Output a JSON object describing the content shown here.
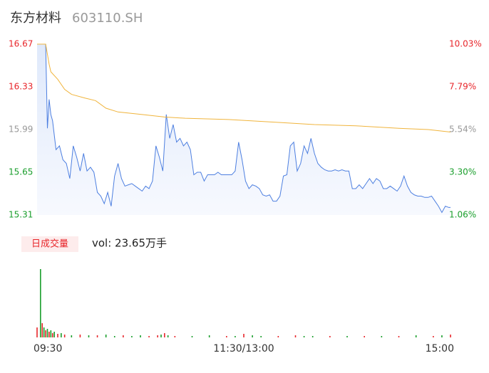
{
  "header": {
    "name": "东方材料",
    "code": "603110.SH"
  },
  "chart_data": {
    "type": "line",
    "xlim": [
      0,
      240
    ],
    "xticks": [
      {
        "value": 0,
        "label": "09:30"
      },
      {
        "value": 120,
        "label": "11:30/13:00"
      },
      {
        "value": 240,
        "label": "15:00"
      }
    ],
    "ylim": [
      15.31,
      16.67
    ],
    "yticks": [
      15.31,
      15.65,
      15.99,
      16.33,
      16.67
    ],
    "y2lim": [
      1.06,
      10.03
    ],
    "y2ticks": [
      {
        "value": 1.06,
        "label": "1.06%"
      },
      {
        "value": 3.3,
        "label": "3.30%"
      },
      {
        "value": 5.54,
        "label": "5.54%"
      },
      {
        "value": 7.79,
        "label": "7.79%"
      },
      {
        "value": 10.03,
        "label": "10.03%"
      }
    ],
    "tick_colors": [
      "#1a9e2c",
      "#1a9e2c",
      "#999999",
      "#e8262b",
      "#e8262b"
    ],
    "series": [
      {
        "color": "#4d7fe0",
        "x": [
          0,
          5,
          6,
          7,
          8,
          9,
          11,
          13,
          15,
          17,
          19,
          21,
          23,
          25,
          27,
          29,
          31,
          33,
          35,
          37,
          39,
          41,
          43,
          45,
          47,
          49,
          51,
          53,
          55,
          57,
          59,
          61,
          63,
          65,
          67,
          69,
          71,
          73,
          75,
          77,
          79,
          81,
          83,
          85,
          87,
          89,
          91,
          93,
          95,
          97,
          99,
          101,
          103,
          105,
          107,
          109,
          111,
          113,
          115,
          117,
          119,
          121,
          123,
          125,
          127,
          129,
          131,
          133,
          135,
          137,
          139,
          141,
          143,
          145,
          147,
          149,
          151,
          153,
          155,
          157,
          159,
          161,
          163,
          165,
          167,
          169,
          171,
          173,
          175,
          177,
          179,
          181,
          183,
          185,
          187,
          189,
          191,
          193,
          195,
          197,
          199,
          201,
          203,
          205,
          207,
          209,
          211,
          213,
          215,
          217,
          219,
          221,
          223,
          225,
          227,
          229,
          231,
          233,
          235,
          237,
          239,
          240
        ],
        "values": [
          16.67,
          16.67,
          16.0,
          16.23,
          16.11,
          16.06,
          15.83,
          15.86,
          15.75,
          15.72,
          15.6,
          15.86,
          15.77,
          15.66,
          15.8,
          15.66,
          15.69,
          15.65,
          15.49,
          15.46,
          15.4,
          15.49,
          15.38,
          15.62,
          15.72,
          15.6,
          15.54,
          15.55,
          15.56,
          15.54,
          15.52,
          15.5,
          15.54,
          15.52,
          15.58,
          15.86,
          15.77,
          15.66,
          16.11,
          15.92,
          16.03,
          15.89,
          15.92,
          15.86,
          15.89,
          15.83,
          15.63,
          15.65,
          15.65,
          15.58,
          15.63,
          15.63,
          15.63,
          15.65,
          15.63,
          15.63,
          15.63,
          15.63,
          15.66,
          15.89,
          15.75,
          15.58,
          15.52,
          15.55,
          15.54,
          15.52,
          15.47,
          15.46,
          15.47,
          15.42,
          15.42,
          15.46,
          15.62,
          15.63,
          15.86,
          15.89,
          15.66,
          15.72,
          15.86,
          15.8,
          15.92,
          15.8,
          15.72,
          15.69,
          15.67,
          15.66,
          15.66,
          15.67,
          15.66,
          15.67,
          15.66,
          15.66,
          15.52,
          15.52,
          15.55,
          15.52,
          15.56,
          15.6,
          15.56,
          15.6,
          15.58,
          15.52,
          15.52,
          15.54,
          15.52,
          15.5,
          15.54,
          15.62,
          15.54,
          15.49,
          15.47,
          15.46,
          15.46,
          15.45,
          15.45,
          15.46,
          15.42,
          15.38,
          15.33,
          15.38,
          15.37,
          15.37
        ]
      },
      {
        "color": "#f0b43c",
        "x": [
          0,
          5,
          7,
          8,
          12,
          16,
          20,
          28,
          34,
          40,
          47,
          61,
          74,
          86,
          111,
          136,
          161,
          185,
          210,
          227,
          240
        ],
        "values": [
          16.67,
          16.67,
          16.51,
          16.45,
          16.39,
          16.31,
          16.27,
          16.24,
          16.22,
          16.16,
          16.13,
          16.11,
          16.09,
          16.08,
          16.07,
          16.05,
          16.03,
          16.02,
          16.0,
          15.99,
          15.97
        ]
      }
    ],
    "volume": {
      "label": "日成交量",
      "summary": "vol: 23.65万手",
      "x": [
        0,
        2,
        3,
        4,
        5,
        6,
        7,
        8,
        9,
        10,
        12,
        14,
        16,
        20,
        25,
        30,
        35,
        40,
        45,
        50,
        55,
        60,
        65,
        70,
        72,
        74,
        76,
        80,
        90,
        100,
        110,
        115,
        120,
        125,
        130,
        140,
        150,
        155,
        160,
        170,
        180,
        190,
        200,
        210,
        220,
        230,
        235,
        240
      ],
      "values": [
        4200,
        28800,
        6000,
        4200,
        3000,
        3600,
        2400,
        3000,
        1800,
        2400,
        1500,
        1800,
        1200,
        900,
        1200,
        900,
        900,
        1200,
        600,
        900,
        600,
        900,
        600,
        900,
        1200,
        1800,
        900,
        600,
        600,
        900,
        600,
        600,
        1500,
        900,
        600,
        600,
        900,
        600,
        600,
        600,
        600,
        600,
        600,
        600,
        900,
        600,
        900,
        1200
      ],
      "colors": [
        "#e8262b",
        "#1a9e2c",
        "#e8262b",
        "#1a9e2c",
        "#e8262b",
        "#1a9e2c",
        "#e8262b",
        "#1a9e2c",
        "#e8262b",
        "#1a9e2c",
        "#e8262b",
        "#1a9e2c",
        "#e8262b",
        "#1a9e2c",
        "#e8262b",
        "#1a9e2c",
        "#e8262b",
        "#1a9e2c",
        "#1a9e2c",
        "#e8262b",
        "#1a9e2c",
        "#1a9e2c",
        "#e8262b",
        "#e8262b",
        "#1a9e2c",
        "#e8262b",
        "#1a9e2c",
        "#e8262b",
        "#1a9e2c",
        "#1a9e2c",
        "#e8262b",
        "#1a9e2c",
        "#e8262b",
        "#1a9e2c",
        "#1a9e2c",
        "#e8262b",
        "#e8262b",
        "#1a9e2c",
        "#1a9e2c",
        "#e8262b",
        "#1a9e2c",
        "#e8262b",
        "#1a9e2c",
        "#e8262b",
        "#1a9e2c",
        "#e8262b",
        "#1a9e2c",
        "#e8262b"
      ]
    }
  }
}
